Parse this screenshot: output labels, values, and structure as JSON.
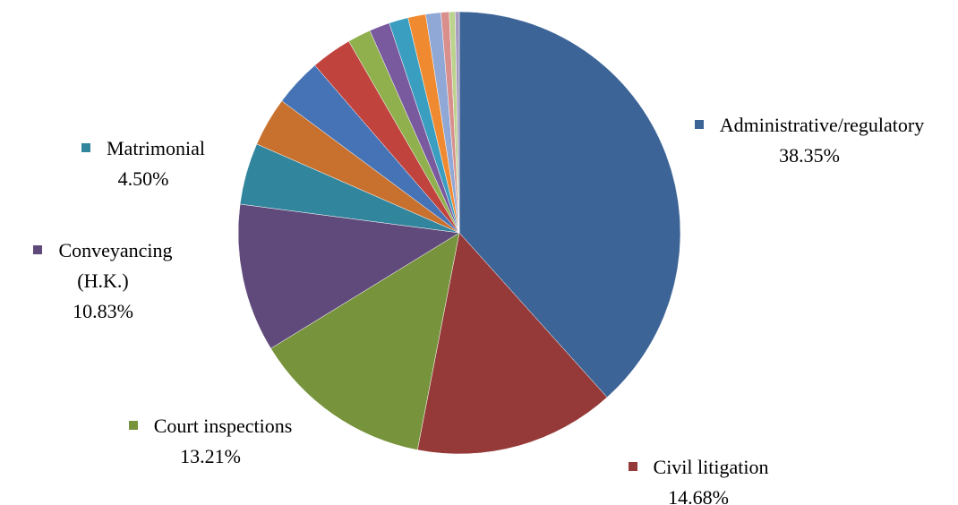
{
  "chart_data": {
    "type": "pie",
    "categories": [
      "Administrative/regulatory",
      "Civil litigation",
      "Court inspections",
      "Conveyancing (H.K.)",
      "Matrimonial",
      null,
      null,
      null,
      null,
      null,
      null,
      null,
      null,
      null,
      null,
      null
    ],
    "values": [
      38.35,
      14.68,
      13.21,
      10.83,
      4.5,
      3.6,
      3.5,
      3.0,
      1.7,
      1.5,
      1.4,
      1.3,
      1.1,
      0.6,
      0.43,
      0.3
    ],
    "value_labels": [
      "38.35%",
      "14.68%",
      "13.21%",
      "10.83%",
      "4.50%",
      null,
      null,
      null,
      null,
      null,
      null,
      null,
      null,
      null,
      null,
      null
    ],
    "colors": [
      "#3d6497",
      "#953a38",
      "#77933c",
      "#604a7b",
      "#31859c",
      "#c8712f",
      "#4673b5",
      "#c0433e",
      "#8fb04d",
      "#7a5a9e",
      "#3a9ec0",
      "#f08a30",
      "#8fa8d5",
      "#d9908d",
      "#bcd38e",
      "#a89bc0"
    ]
  }
}
